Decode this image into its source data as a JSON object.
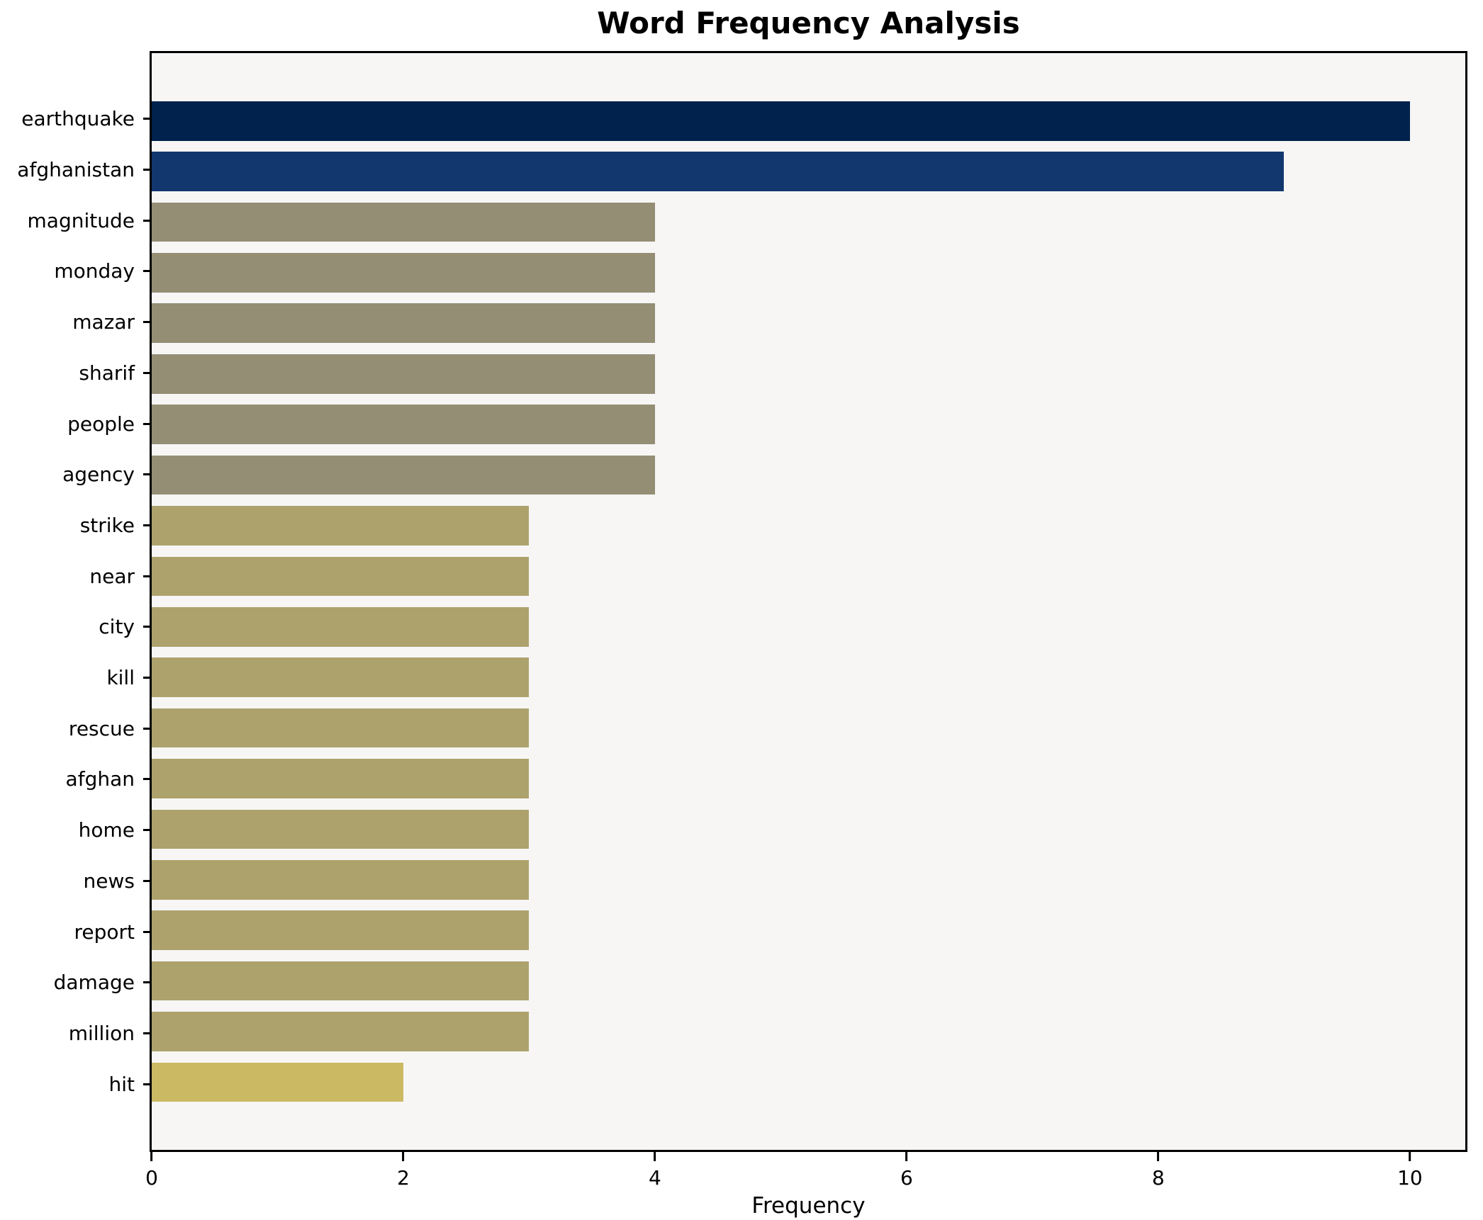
{
  "chart_data": {
    "type": "bar",
    "orientation": "horizontal",
    "title": "Word Frequency Analysis",
    "xlabel": "Frequency",
    "ylabel": "",
    "categories": [
      "earthquake",
      "afghanistan",
      "magnitude",
      "monday",
      "mazar",
      "sharif",
      "people",
      "agency",
      "strike",
      "near",
      "city",
      "kill",
      "rescue",
      "afghan",
      "home",
      "news",
      "report",
      "damage",
      "million",
      "hit"
    ],
    "values": [
      10,
      9,
      4,
      4,
      4,
      4,
      4,
      4,
      3,
      3,
      3,
      3,
      3,
      3,
      3,
      3,
      3,
      3,
      3,
      2
    ],
    "bar_colors": [
      "#01224C",
      "#11376E",
      "#948E75",
      "#948E75",
      "#948E75",
      "#948E75",
      "#948E75",
      "#948E75",
      "#ADA26C",
      "#ADA26C",
      "#ADA26C",
      "#ADA26C",
      "#ADA26C",
      "#ADA26C",
      "#ADA26C",
      "#ADA26C",
      "#ADA26C",
      "#ADA26C",
      "#ADA26C",
      "#CBB963"
    ],
    "xlim": [
      0,
      10.44
    ],
    "xticks": [
      0,
      2,
      4,
      6,
      8,
      10
    ],
    "grid": false,
    "legend": null,
    "plot_background": "#f7f6f5",
    "page_background": "#ffffff",
    "spine_color": "#000000",
    "text_color": "#000000"
  }
}
